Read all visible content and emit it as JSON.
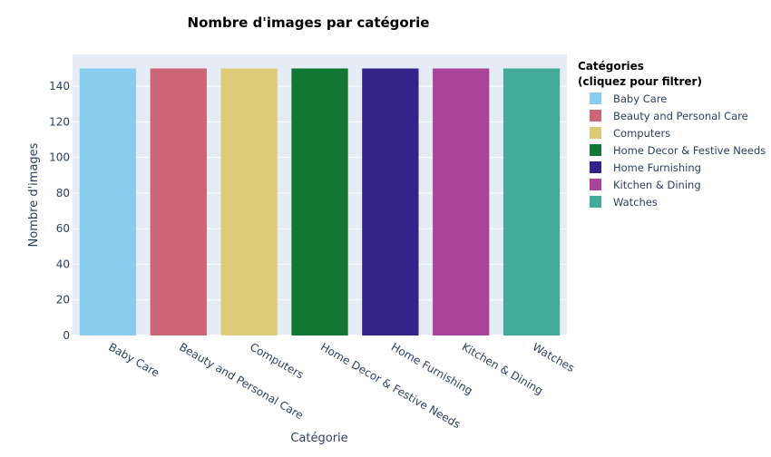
{
  "chart_data": {
    "type": "bar",
    "title": "Nombre d'images par catégorie",
    "xlabel": "Catégorie",
    "ylabel": "Nombre d'images",
    "categories": [
      "Baby Care",
      "Beauty and Personal Care",
      "Computers",
      "Home Decor & Festive Needs",
      "Home Furnishing",
      "Kitchen & Dining",
      "Watches"
    ],
    "values": [
      150,
      150,
      150,
      150,
      150,
      150,
      150
    ],
    "colors": [
      "#88ccee",
      "#cc6677",
      "#ddcc77",
      "#117733",
      "#332288",
      "#aa4499",
      "#44aa99"
    ],
    "ylim": [
      0,
      157.9
    ],
    "yticks": [
      0,
      20,
      40,
      60,
      80,
      100,
      120,
      140
    ],
    "grid": true,
    "plot_bgcolor": "#e5ecf6",
    "legend": {
      "title_line1": "Catégories",
      "title_line2": "(cliquez pour filtrer)",
      "placement": "right"
    }
  }
}
